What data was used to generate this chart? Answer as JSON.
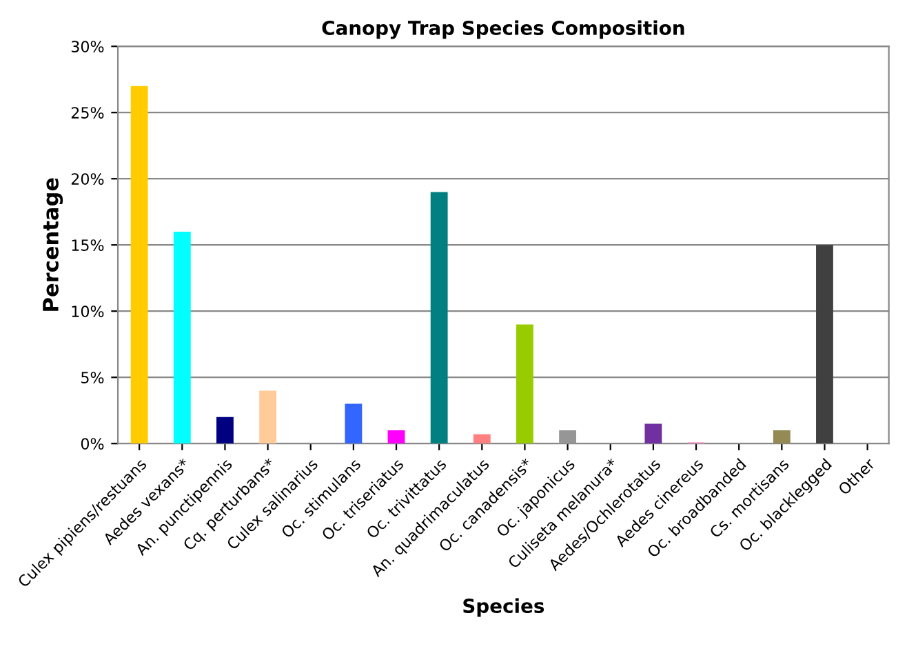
{
  "chart_data": {
    "type": "bar",
    "title": "Canopy Trap Species Composition",
    "xlabel": "Species",
    "ylabel": "Percentage",
    "categories": [
      "Culex pipiens/restuans",
      "Aedes vexans*",
      "An. punctipennis",
      "Cq. perturbans*",
      "Culex salinarius",
      "Oc. stimulans",
      "Oc. triseriatus",
      "Oc. trivittatus",
      "An. quadrimaculatus",
      "Oc. canadensis*",
      "Oc. japonicus",
      "Culiseta melanura*",
      "Aedes/Ochlerotatus",
      "Aedes cinereus",
      "Oc. broadbanded",
      "Cs. mortisans",
      "Oc. blacklegged",
      "Other"
    ],
    "values": [
      27,
      16,
      2,
      4,
      0,
      3,
      1,
      19,
      0.7,
      9,
      1,
      0,
      1.5,
      0.1,
      0,
      1,
      15,
      0
    ],
    "colors": [
      "#ffcc00",
      "#00ffff",
      "#000080",
      "#ffcc99",
      "#993366",
      "#3366ff",
      "#ff00ff",
      "#008080",
      "#ff8080",
      "#99cc00",
      "#969696",
      "#0066cc",
      "#7030a0",
      "#ff99cc",
      "#c0c0c0",
      "#948a54",
      "#404040",
      "#808080"
    ],
    "ylim": [
      0,
      30
    ],
    "yticks": [
      {
        "value": 0,
        "label": "0%"
      },
      {
        "value": 5,
        "label": "5%"
      },
      {
        "value": 10,
        "label": "10%"
      },
      {
        "value": 15,
        "label": "15%"
      },
      {
        "value": 20,
        "label": "20%"
      },
      {
        "value": 25,
        "label": "25%"
      },
      {
        "value": 30,
        "label": "30%"
      }
    ],
    "grid": "y"
  }
}
